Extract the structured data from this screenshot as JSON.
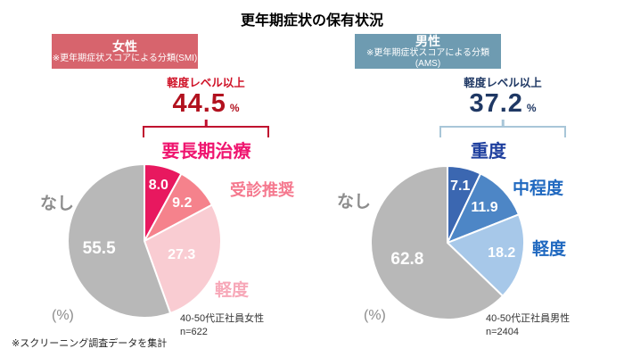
{
  "title": "更年期症状の保有状況",
  "footnote": "※スクリーニング調査データを集計",
  "panels": [
    {
      "header": {
        "title": "女性",
        "subtitle": "※更年期症状スコアによる分類(SMI)",
        "bg": "#d7646d",
        "text_color": "#ffffff"
      },
      "summary": {
        "label": "軽度レベル以上",
        "value": "44.5",
        "unit": "%",
        "label_color": "#cf1126",
        "value_color": "#b2121f",
        "bracket_color": "#c00f2f"
      },
      "none_label": "なし",
      "percent_label": "(%)",
      "sample_line1": "40-50代正社員女性",
      "sample_line2": "n=622",
      "category_label_colors": [
        "#ef156f",
        "#f5788e",
        "#f7a8b8",
        "#8c8c8c"
      ],
      "none_label_color": "#8c8c8c"
    },
    {
      "header": {
        "title": "男性",
        "subtitle": "※更年期症状スコアによる分類(AMS)",
        "bg": "#6e9bb1",
        "text_color": "#ffffff"
      },
      "summary": {
        "label": "軽度レベル以上",
        "value": "37.2",
        "unit": "%",
        "label_color": "#1f3864",
        "value_color": "#1f3864",
        "bracket_color": "#a8c6d8"
      },
      "none_label": "なし",
      "percent_label": "(%)",
      "sample_line1": "40-50代正社員男性",
      "sample_line2": "n=2404",
      "category_label_colors": [
        "#1e3f9e",
        "#2069c0",
        "#2069c0",
        "#8c8c8c"
      ],
      "none_label_color": "#8c8c8c"
    }
  ],
  "chart_data": [
    {
      "type": "pie",
      "title": "女性",
      "subtitle": "※更年期症状スコアによる分類(SMI)",
      "categories": [
        "要長期治療",
        "受診推奨",
        "軽度",
        "なし"
      ],
      "values": [
        8.0,
        9.2,
        27.3,
        55.5
      ],
      "colors": [
        "#e8185f",
        "#f5828c",
        "#f9ccd2",
        "#b8b8b8"
      ],
      "unit": "%",
      "start_angle_deg": 0,
      "direction": "clockwise",
      "annotation": {
        "label": "軽度レベル以上",
        "value": 44.5
      },
      "sample": "40-50代正社員女性 n=622"
    },
    {
      "type": "pie",
      "title": "男性",
      "subtitle": "※更年期症状スコアによる分類(AMS)",
      "categories": [
        "重度",
        "中程度",
        "軽度",
        "なし"
      ],
      "values": [
        7.1,
        11.9,
        18.2,
        62.8
      ],
      "colors": [
        "#3b67b1",
        "#4d86c6",
        "#a7c8e9",
        "#b8b8b8"
      ],
      "unit": "%",
      "start_angle_deg": 0,
      "direction": "clockwise",
      "annotation": {
        "label": "軽度レベル以上",
        "value": 37.2
      },
      "sample": "40-50代正社員男性 n=2404"
    }
  ]
}
